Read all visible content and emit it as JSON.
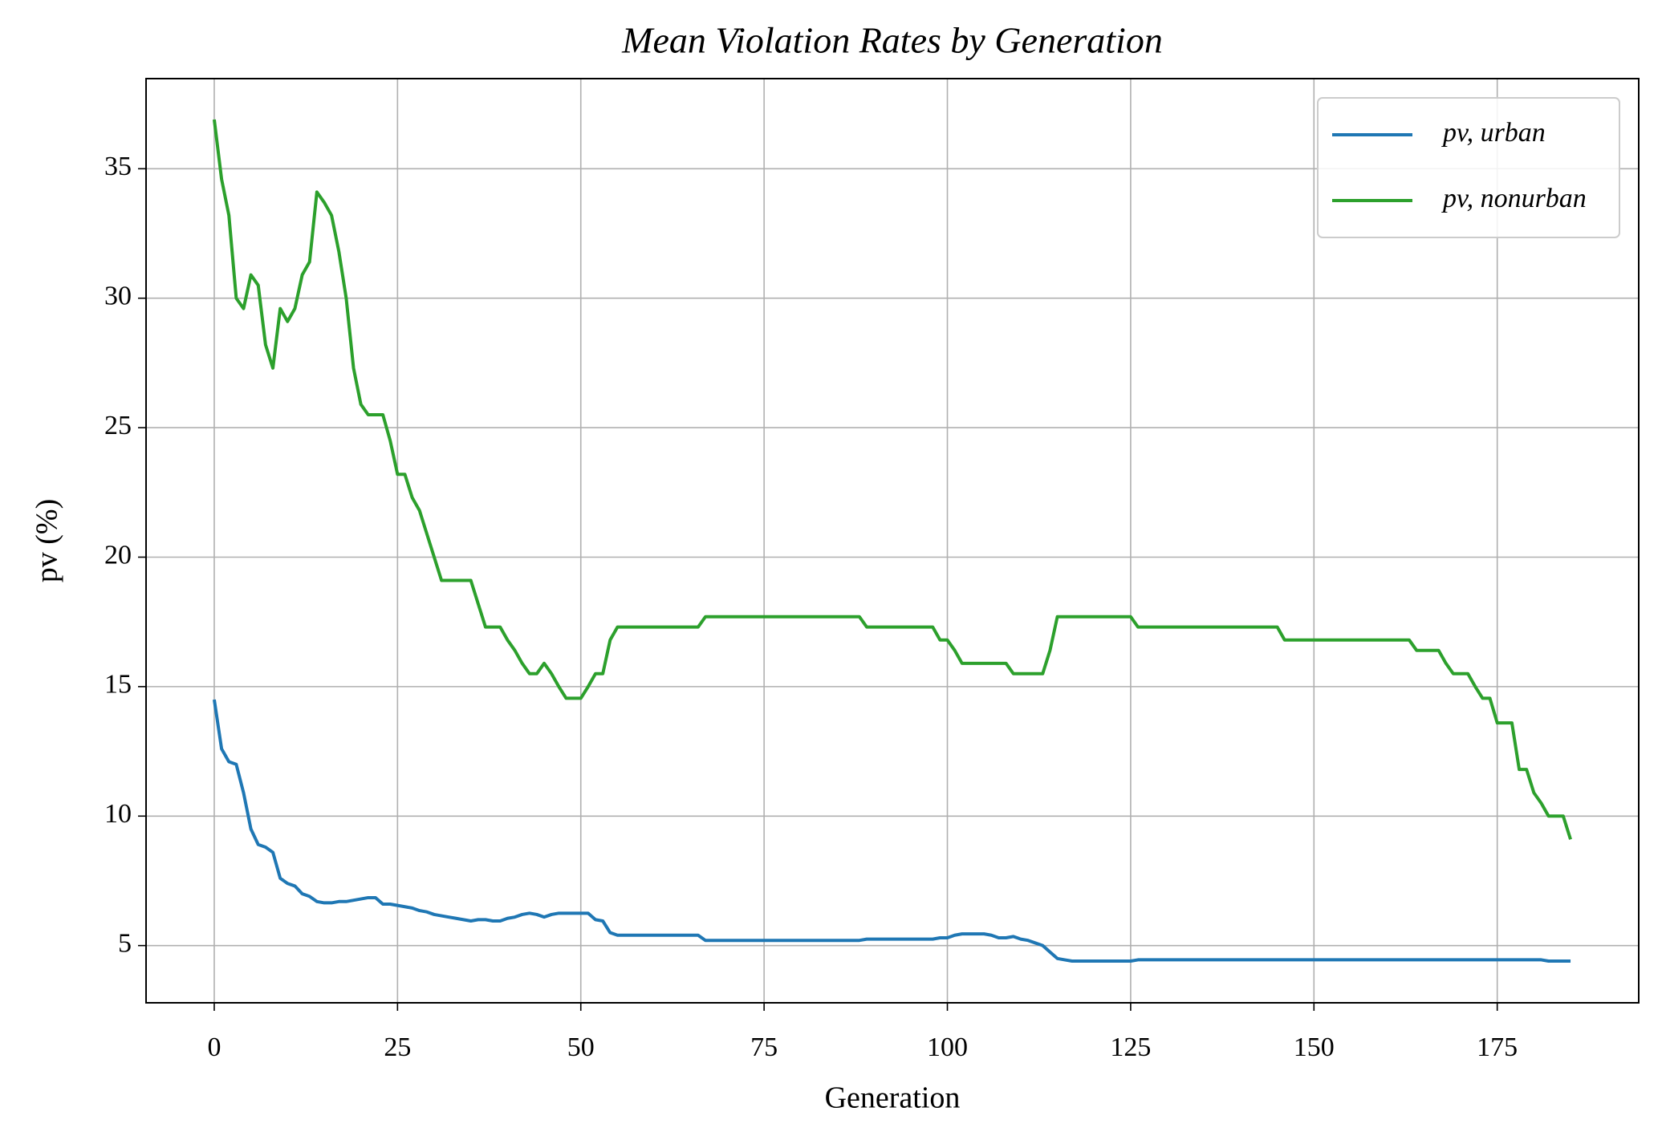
{
  "chart_data": {
    "type": "line",
    "title": "Mean Violation Rates by Generation",
    "xlabel": "Generation",
    "ylabel": "pv (%)",
    "xlim": [
      -9.3,
      194.3
    ],
    "ylim": [
      2.79,
      38.48
    ],
    "xticks": [
      0,
      25,
      50,
      75,
      100,
      125,
      150,
      175
    ],
    "yticks": [
      5,
      10,
      15,
      20,
      25,
      30,
      35
    ],
    "grid": true,
    "legend": "upper right",
    "x": [
      0,
      1,
      2,
      3,
      4,
      5,
      6,
      7,
      8,
      9,
      10,
      11,
      12,
      13,
      14,
      15,
      16,
      17,
      18,
      19,
      20,
      21,
      22,
      23,
      24,
      25,
      26,
      27,
      28,
      29,
      30,
      31,
      32,
      33,
      34,
      35,
      36,
      37,
      38,
      39,
      40,
      41,
      42,
      43,
      44,
      45,
      46,
      47,
      48,
      49,
      50,
      51,
      52,
      53,
      54,
      55,
      56,
      57,
      58,
      59,
      60,
      61,
      62,
      63,
      64,
      65,
      66,
      67,
      68,
      69,
      70,
      71,
      72,
      73,
      74,
      75,
      76,
      77,
      78,
      79,
      80,
      81,
      82,
      83,
      84,
      85,
      86,
      87,
      88,
      89,
      90,
      91,
      92,
      93,
      94,
      95,
      96,
      97,
      98,
      99,
      100,
      101,
      102,
      103,
      104,
      105,
      106,
      107,
      108,
      109,
      110,
      111,
      112,
      113,
      114,
      115,
      116,
      117,
      118,
      119,
      120,
      121,
      122,
      123,
      124,
      125,
      126,
      127,
      128,
      129,
      130,
      131,
      132,
      133,
      134,
      135,
      136,
      137,
      138,
      139,
      140,
      141,
      142,
      143,
      144,
      145,
      146,
      147,
      148,
      149,
      150,
      151,
      152,
      153,
      154,
      155,
      156,
      157,
      158,
      159,
      160,
      161,
      162,
      163,
      164,
      165,
      166,
      167,
      168,
      169,
      170,
      171,
      172,
      173,
      174,
      175,
      176,
      177,
      178,
      179,
      180,
      181,
      182,
      183,
      184,
      185
    ],
    "series": [
      {
        "name": "pv, urban",
        "color": "#1f77b4",
        "values": [
          14.5,
          12.6,
          12.1,
          12.0,
          10.9,
          9.5,
          8.9,
          8.8,
          8.6,
          7.6,
          7.4,
          7.3,
          7.0,
          6.9,
          6.7,
          6.65,
          6.65,
          6.7,
          6.7,
          6.75,
          6.8,
          6.85,
          6.85,
          6.6,
          6.6,
          6.55,
          6.5,
          6.45,
          6.35,
          6.3,
          6.2,
          6.15,
          6.1,
          6.05,
          6.0,
          5.95,
          6.0,
          6.0,
          5.95,
          5.95,
          6.05,
          6.1,
          6.2,
          6.25,
          6.2,
          6.1,
          6.2,
          6.25,
          6.25,
          6.25,
          6.25,
          6.25,
          6.0,
          5.95,
          5.5,
          5.4,
          5.4,
          5.4,
          5.4,
          5.4,
          5.4,
          5.4,
          5.4,
          5.4,
          5.4,
          5.4,
          5.4,
          5.2,
          5.2,
          5.2,
          5.2,
          5.2,
          5.2,
          5.2,
          5.2,
          5.2,
          5.2,
          5.2,
          5.2,
          5.2,
          5.2,
          5.2,
          5.2,
          5.2,
          5.2,
          5.2,
          5.2,
          5.2,
          5.2,
          5.25,
          5.25,
          5.25,
          5.25,
          5.25,
          5.25,
          5.25,
          5.25,
          5.25,
          5.25,
          5.3,
          5.3,
          5.4,
          5.45,
          5.45,
          5.45,
          5.45,
          5.4,
          5.3,
          5.3,
          5.35,
          5.25,
          5.2,
          5.1,
          5.0,
          4.75,
          4.5,
          4.45,
          4.4,
          4.4,
          4.4,
          4.4,
          4.4,
          4.4,
          4.4,
          4.4,
          4.4,
          4.45,
          4.45,
          4.45,
          4.45,
          4.45,
          4.45,
          4.45,
          4.45,
          4.45,
          4.45,
          4.45,
          4.45,
          4.45,
          4.45,
          4.45,
          4.45,
          4.45,
          4.45,
          4.45,
          4.45,
          4.45,
          4.45,
          4.45,
          4.45,
          4.45,
          4.45,
          4.45,
          4.45,
          4.45,
          4.45,
          4.45,
          4.45,
          4.45,
          4.45,
          4.45,
          4.45,
          4.45,
          4.45,
          4.45,
          4.45,
          4.45,
          4.45,
          4.45,
          4.45,
          4.45,
          4.45,
          4.45,
          4.45,
          4.45,
          4.45,
          4.45,
          4.45,
          4.45,
          4.45,
          4.45,
          4.45,
          4.4,
          4.4,
          4.4,
          4.4
        ]
      },
      {
        "name": "pv, nonurban",
        "color": "#2ca02c",
        "values": [
          36.9,
          34.6,
          33.2,
          30.0,
          29.6,
          30.9,
          30.5,
          28.2,
          27.3,
          29.6,
          29.1,
          29.6,
          30.9,
          31.4,
          34.1,
          33.7,
          33.2,
          31.8,
          30.0,
          27.3,
          25.9,
          25.5,
          25.5,
          25.5,
          24.5,
          23.2,
          23.2,
          22.3,
          21.8,
          20.9,
          20.0,
          19.1,
          19.1,
          19.1,
          19.1,
          19.1,
          18.2,
          17.3,
          17.3,
          17.3,
          16.8,
          16.4,
          15.9,
          15.5,
          15.5,
          15.9,
          15.5,
          15.0,
          14.55,
          14.55,
          14.55,
          15.0,
          15.5,
          15.5,
          16.8,
          17.3,
          17.3,
          17.3,
          17.3,
          17.3,
          17.3,
          17.3,
          17.3,
          17.3,
          17.3,
          17.3,
          17.3,
          17.7,
          17.7,
          17.7,
          17.7,
          17.7,
          17.7,
          17.7,
          17.7,
          17.7,
          17.7,
          17.7,
          17.7,
          17.7,
          17.7,
          17.7,
          17.7,
          17.7,
          17.7,
          17.7,
          17.7,
          17.7,
          17.7,
          17.3,
          17.3,
          17.3,
          17.3,
          17.3,
          17.3,
          17.3,
          17.3,
          17.3,
          17.3,
          16.8,
          16.8,
          16.4,
          15.9,
          15.9,
          15.9,
          15.9,
          15.9,
          15.9,
          15.9,
          15.5,
          15.5,
          15.5,
          15.5,
          15.5,
          16.4,
          17.7,
          17.7,
          17.7,
          17.7,
          17.7,
          17.7,
          17.7,
          17.7,
          17.7,
          17.7,
          17.7,
          17.3,
          17.3,
          17.3,
          17.3,
          17.3,
          17.3,
          17.3,
          17.3,
          17.3,
          17.3,
          17.3,
          17.3,
          17.3,
          17.3,
          17.3,
          17.3,
          17.3,
          17.3,
          17.3,
          17.3,
          16.8,
          16.8,
          16.8,
          16.8,
          16.8,
          16.8,
          16.8,
          16.8,
          16.8,
          16.8,
          16.8,
          16.8,
          16.8,
          16.8,
          16.8,
          16.8,
          16.8,
          16.8,
          16.4,
          16.4,
          16.4,
          16.4,
          15.9,
          15.5,
          15.5,
          15.5,
          15.0,
          14.55,
          14.55,
          13.6,
          13.6,
          13.6,
          11.8,
          11.8,
          10.9,
          10.5,
          10.0,
          10.0,
          10.0,
          9.1
        ]
      }
    ]
  }
}
